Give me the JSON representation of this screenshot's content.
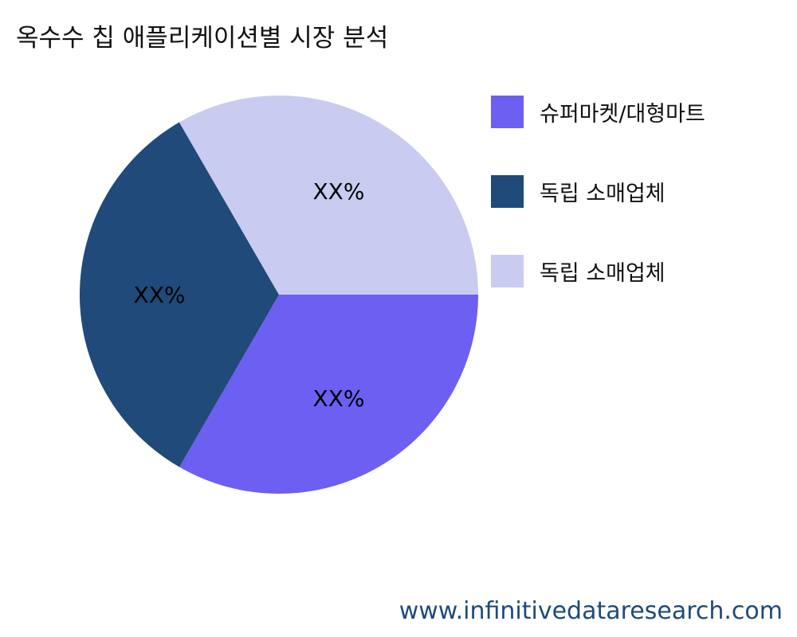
{
  "chart_data": {
    "type": "pie",
    "title": "옥수수 칩 애플리케이션별 시장 분석",
    "slices": [
      {
        "label": "슈퍼마켓/대형마트",
        "value": 33.33,
        "data_label": "XX%",
        "color": "#6c5ff2"
      },
      {
        "label": "독립 소매업체",
        "value": 33.33,
        "data_label": "XX%",
        "color": "#1f4a7a"
      },
      {
        "label": "독립 소매업체",
        "value": 33.34,
        "data_label": "XX%",
        "color": "#c9cbf1"
      }
    ],
    "start_angle": "3 o'clock",
    "direction": "clockwise",
    "legend_position": "right"
  },
  "footer": "www.infinitivedataresearch.com"
}
